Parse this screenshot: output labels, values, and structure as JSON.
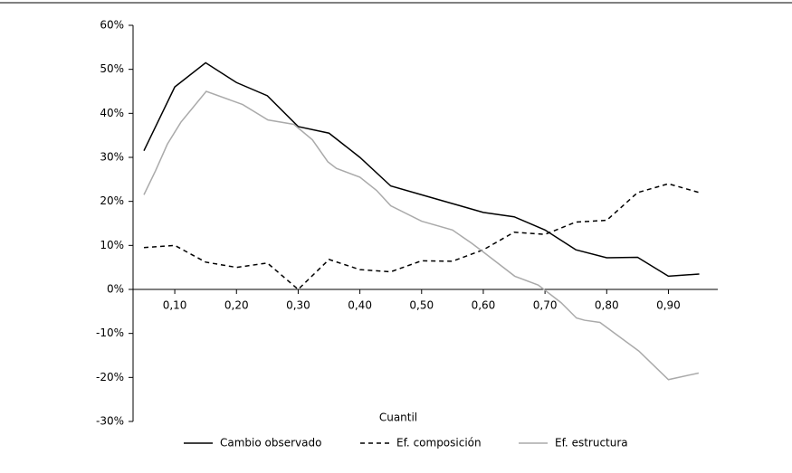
{
  "chart_data": {
    "type": "line",
    "x_label": "Cuantil",
    "legend": "bottom",
    "grid": false,
    "xlim": [
      0.0324,
      0.98
    ],
    "xticks": [
      {
        "value": 0.1,
        "label": "0,10"
      },
      {
        "value": 0.2,
        "label": "0,20"
      },
      {
        "value": 0.3,
        "label": "0,30"
      },
      {
        "value": 0.4,
        "label": "0,40"
      },
      {
        "value": 0.5,
        "label": "0,50"
      },
      {
        "value": 0.6,
        "label": "0,60"
      },
      {
        "value": 0.7,
        "label": "0,70"
      },
      {
        "value": 0.8,
        "label": "0,80"
      },
      {
        "value": 0.9,
        "label": "0,90"
      }
    ],
    "ylim": [
      -30,
      60
    ],
    "yticks": [
      {
        "value": -30,
        "label": "-30%"
      },
      {
        "value": -20,
        "label": "-20%"
      },
      {
        "value": -10,
        "label": "-10%"
      },
      {
        "value": 0,
        "label": "0%"
      },
      {
        "value": 10,
        "label": "10%"
      },
      {
        "value": 20,
        "label": "20%"
      },
      {
        "value": 30,
        "label": "30%"
      },
      {
        "value": 40,
        "label": "40%"
      },
      {
        "value": 50,
        "label": "50%"
      },
      {
        "value": 60,
        "label": "60%"
      }
    ],
    "series": [
      {
        "name": "Cambio observado",
        "color": "#000000",
        "dash": "solid",
        "x": [
          0.05,
          0.1,
          0.15,
          0.2,
          0.25,
          0.3,
          0.35,
          0.4,
          0.45,
          0.5,
          0.55,
          0.6,
          0.65,
          0.7,
          0.75,
          0.8,
          0.85,
          0.9,
          0.95
        ],
        "values": [
          31.5,
          46,
          51.5,
          47,
          44,
          37,
          35.5,
          30,
          23.5,
          21.5,
          19.5,
          17.5,
          16.5,
          13.5,
          9,
          7.2,
          7.3,
          3,
          3.5
        ]
      },
      {
        "name": "Ef. composición",
        "color": "#000000",
        "dash": "dashed",
        "x": [
          0.05,
          0.1,
          0.15,
          0.2,
          0.25,
          0.3,
          0.35,
          0.4,
          0.45,
          0.5,
          0.55,
          0.6,
          0.65,
          0.7,
          0.75,
          0.8,
          0.85,
          0.9,
          0.95
        ],
        "values": [
          9.5,
          10,
          6.2,
          5,
          6,
          0,
          6.8,
          4.5,
          4,
          6.5,
          6.4,
          9,
          13,
          12.5,
          15.3,
          15.7,
          22,
          24,
          22
        ]
      },
      {
        "name": "Ef. estructura",
        "color": "#aaaaaa",
        "dash": "solid",
        "x": [
          0.05,
          0.069,
          0.088,
          0.11,
          0.151,
          0.21,
          0.251,
          0.293,
          0.323,
          0.348,
          0.362,
          0.4,
          0.427,
          0.45,
          0.5,
          0.55,
          0.581,
          0.6,
          0.651,
          0.689,
          0.726,
          0.751,
          0.764,
          0.789,
          0.852,
          0.9,
          0.949
        ],
        "values": [
          21.5,
          27,
          33,
          38,
          45,
          42,
          38.5,
          37.5,
          34,
          29,
          27.5,
          25.5,
          22.5,
          19,
          15.5,
          13.5,
          10.5,
          8.5,
          3,
          1,
          -3,
          -6.5,
          -7,
          -7.5,
          -14,
          -20.5,
          -19
        ]
      }
    ]
  }
}
